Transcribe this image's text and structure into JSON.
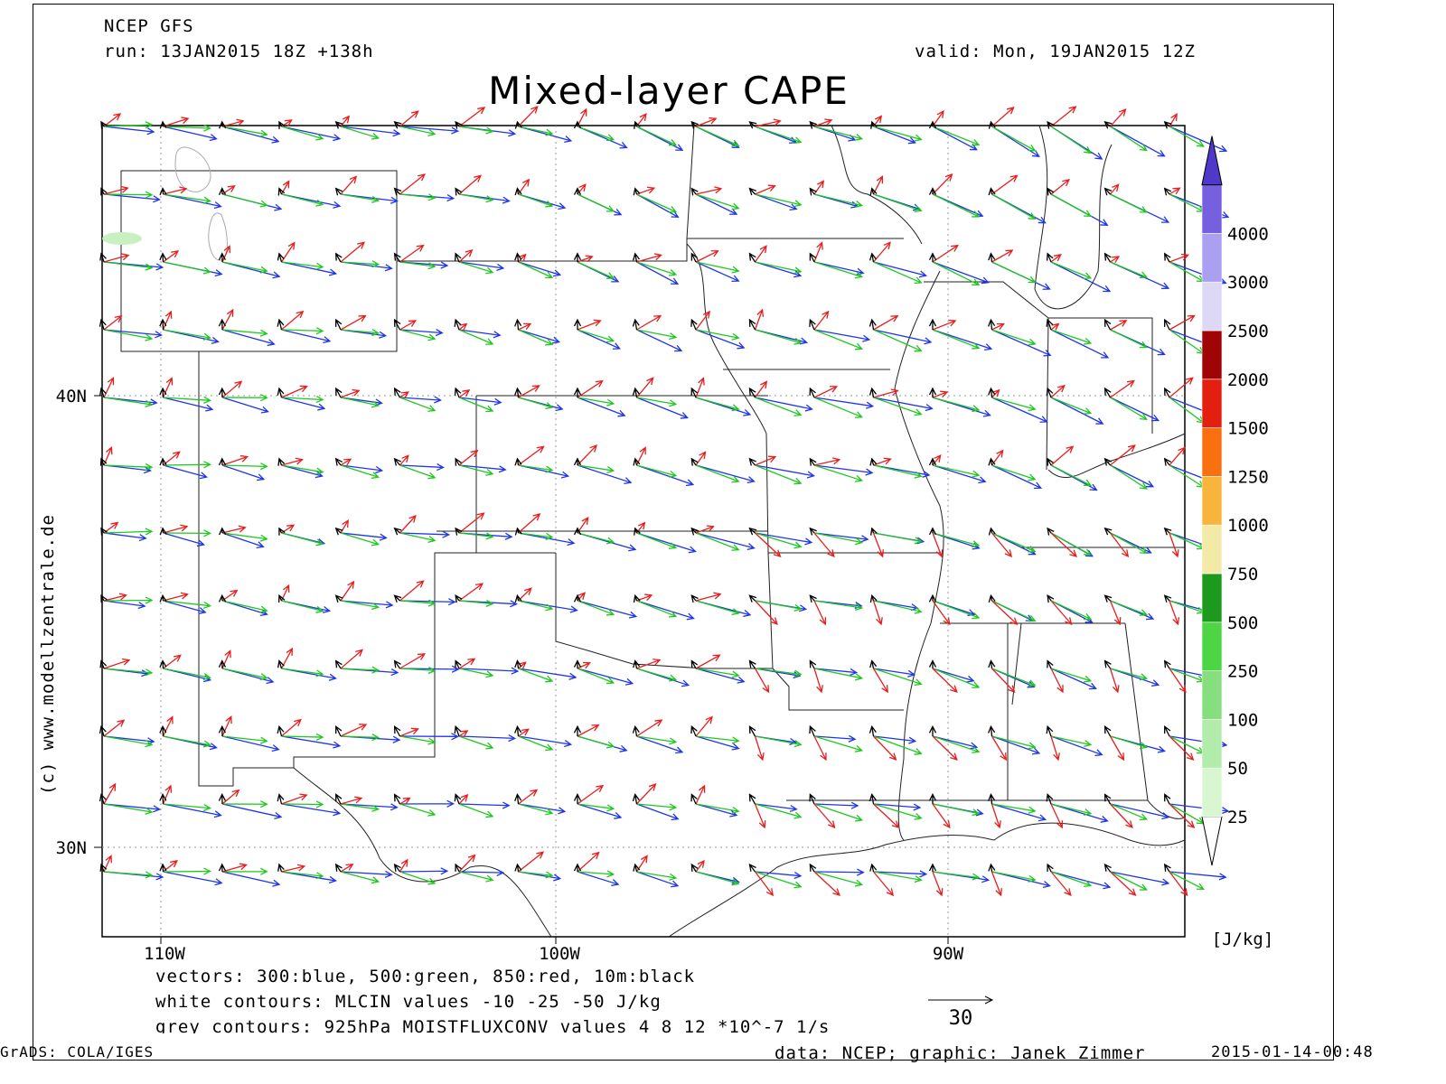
{
  "header": {
    "model": "NCEP GFS",
    "run": "run: 13JAN2015 18Z +138h",
    "valid": "valid: Mon, 19JAN2015 12Z",
    "title": "Mixed-layer CAPE"
  },
  "credit_vertical": "(c) www.modellzentrale.de",
  "map": {
    "lat_labels": [
      "40N",
      "30N"
    ],
    "lon_labels": [
      "110W",
      "100W",
      "90W"
    ],
    "vector_colors": {
      "300hPa": "#1f35e8",
      "500hPa": "#1ec81e",
      "850hPa": "#e81e1e",
      "10m": "#000000"
    }
  },
  "legend_text": {
    "vectors": "vectors: 300:blue, 500:green, 850:red, 10m:black",
    "white_contours": "white contours: MLCIN values -10 -25 -50 J/kg",
    "grey_contours": "grey contours: 925hPa MOISTFLUXCONV values 4 8 12 *10^-7 1/s"
  },
  "reference_vector": "30",
  "colorbar": {
    "unit": "[J/kg]",
    "levels": [
      {
        "label": "25",
        "color": "#d8f7d0"
      },
      {
        "label": "50",
        "color": "#b2ecaa"
      },
      {
        "label": "100",
        "color": "#86de7e"
      },
      {
        "label": "250",
        "color": "#4dd544"
      },
      {
        "label": "500",
        "color": "#1d9a1d"
      },
      {
        "label": "750",
        "color": "#f3eaa8"
      },
      {
        "label": "1000",
        "color": "#f7b53d"
      },
      {
        "label": "1250",
        "color": "#f87010"
      },
      {
        "label": "1500",
        "color": "#e3200f"
      },
      {
        "label": "2000",
        "color": "#a00505"
      },
      {
        "label": "2500",
        "color": "#dcd8f5"
      },
      {
        "label": "3000",
        "color": "#aa9ff0"
      },
      {
        "label": "4000",
        "color": "#7660e0"
      }
    ],
    "top_color": "#5038c8"
  },
  "footer": {
    "left": "GrADS: COLA/IGES",
    "center": "data: NCEP; graphic: Janek Zimmer",
    "right": "2015-01-14-00:48"
  }
}
